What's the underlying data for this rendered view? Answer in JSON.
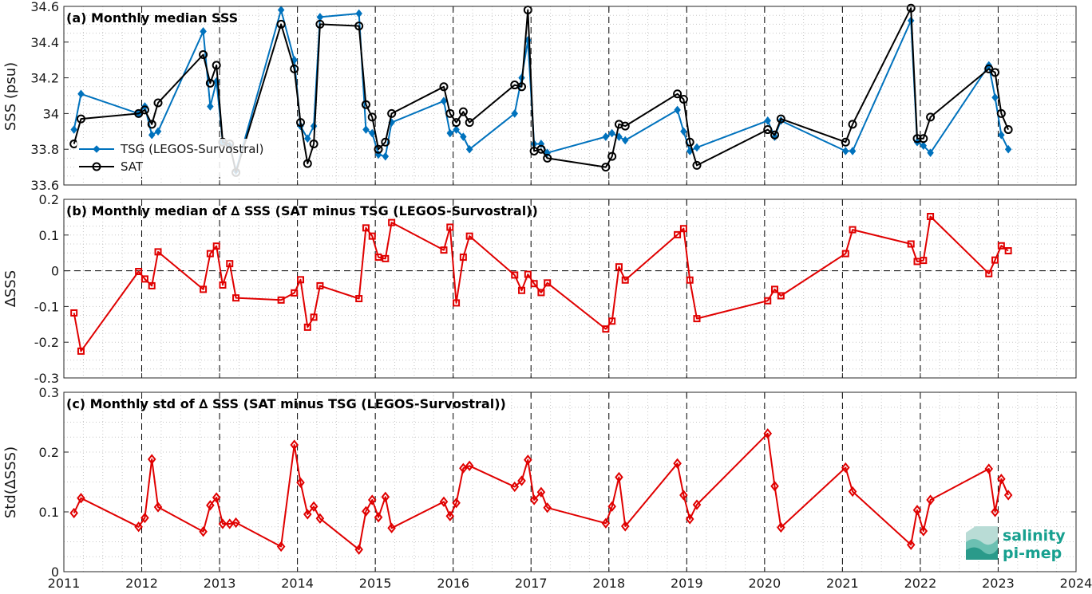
{
  "x_axis": {
    "ticks": [
      "2011",
      "2012",
      "2013",
      "2014",
      "2015",
      "2016",
      "2017",
      "2018",
      "2019",
      "2020",
      "2021",
      "2022",
      "2023",
      "2024"
    ]
  },
  "logo": {
    "line1": "salinity",
    "line2": "pi-mep"
  },
  "colors": {
    "tsg": "#0072bd",
    "sat": "#000000",
    "diff": "#e00000",
    "grid": "#c8c8c8"
  },
  "chart_data": [
    {
      "type": "line",
      "title": "(a) Monthly median SSS",
      "ylabel": "SSS (psu)",
      "xlim": [
        2011,
        2024
      ],
      "ylim": [
        33.6,
        34.6
      ],
      "yticks": [
        "33.6",
        "33.8",
        "34",
        "34.2",
        "34.4",
        "34.6"
      ],
      "yticks_values": [
        33.6,
        33.8,
        34.0,
        34.2,
        34.4,
        34.6
      ],
      "legend_position": "bottom-left",
      "series": [
        {
          "name": "TSG (LEGOS-Survostral)",
          "marker": "diamond-filled",
          "x": [
            2011.13,
            2011.22,
            2011.96,
            2012.04,
            2012.13,
            2012.21,
            2012.79,
            2012.88,
            2012.96,
            2013.04,
            2013.13,
            2013.21,
            2013.79,
            2013.96,
            2014.04,
            2014.13,
            2014.21,
            2014.29,
            2014.79,
            2014.88,
            2014.96,
            2015.04,
            2015.13,
            2015.21,
            2015.88,
            2015.96,
            2016.04,
            2016.13,
            2016.21,
            2016.79,
            2016.88,
            2016.96,
            2017.04,
            2017.13,
            2017.21,
            2017.96,
            2018.04,
            2018.13,
            2018.21,
            2018.88,
            2018.96,
            2019.04,
            2019.13,
            2020.04,
            2020.13,
            2020.21,
            2021.04,
            2021.13,
            2021.88,
            2021.96,
            2022.04,
            2022.13,
            2022.88,
            2022.96,
            2023.04,
            2023.13
          ],
          "y": [
            33.91,
            34.11,
            34.0,
            34.04,
            33.88,
            33.9,
            34.46,
            34.04,
            34.18,
            33.84,
            33.82,
            33.68,
            34.58,
            34.3,
            33.93,
            33.86,
            33.93,
            34.54,
            34.56,
            33.91,
            33.89,
            33.77,
            33.76,
            33.95,
            34.07,
            33.89,
            33.91,
            33.87,
            33.8,
            34.0,
            34.2,
            34.41,
            33.83,
            33.83,
            33.78,
            33.87,
            33.89,
            33.87,
            33.85,
            34.02,
            33.9,
            33.79,
            33.81,
            33.96,
            33.87,
            33.96,
            33.79,
            33.79,
            34.52,
            33.84,
            33.82,
            33.78,
            34.27,
            34.09,
            33.88,
            33.8
          ]
        },
        {
          "name": "SAT",
          "marker": "circle-open",
          "x": [
            2011.13,
            2011.22,
            2011.96,
            2012.04,
            2012.13,
            2012.21,
            2012.79,
            2012.88,
            2012.96,
            2013.04,
            2013.13,
            2013.21,
            2013.79,
            2013.96,
            2014.04,
            2014.13,
            2014.21,
            2014.29,
            2014.79,
            2014.88,
            2014.96,
            2015.04,
            2015.13,
            2015.21,
            2015.88,
            2015.96,
            2016.04,
            2016.13,
            2016.21,
            2016.79,
            2016.88,
            2016.96,
            2017.04,
            2017.13,
            2017.21,
            2017.96,
            2018.04,
            2018.13,
            2018.21,
            2018.88,
            2018.96,
            2019.04,
            2019.13,
            2020.04,
            2020.13,
            2020.21,
            2021.04,
            2021.13,
            2021.88,
            2021.96,
            2022.04,
            2022.13,
            2022.88,
            2022.96,
            2023.04,
            2023.13
          ],
          "y": [
            33.83,
            33.97,
            34.0,
            34.02,
            33.94,
            34.06,
            34.33,
            34.17,
            34.27,
            33.84,
            33.83,
            33.67,
            34.5,
            34.25,
            33.95,
            33.72,
            33.83,
            34.5,
            34.49,
            34.05,
            33.98,
            33.8,
            33.84,
            34.0,
            34.15,
            34.0,
            33.95,
            34.01,
            33.95,
            34.16,
            34.15,
            34.58,
            33.79,
            33.8,
            33.75,
            33.7,
            33.76,
            33.94,
            33.93,
            34.11,
            34.08,
            33.84,
            33.71,
            33.91,
            33.88,
            33.97,
            33.84,
            33.94,
            34.59,
            33.86,
            33.86,
            33.98,
            34.25,
            34.23,
            34.0,
            33.91
          ]
        }
      ]
    },
    {
      "type": "line",
      "title": "(b) Monthly median of ∆ SSS (SAT minus TSG (LEGOS-Survostral))",
      "ylabel": "∆SSS",
      "xlim": [
        2011,
        2024
      ],
      "ylim": [
        -0.3,
        0.2
      ],
      "yticks": [
        "-0.3",
        "-0.2",
        "-0.1",
        "0",
        "0.1",
        "0.2"
      ],
      "yticks_values": [
        -0.3,
        -0.2,
        -0.1,
        0,
        0.1,
        0.2
      ],
      "zero_line": true,
      "series": [
        {
          "marker": "square-open",
          "x": [
            2011.13,
            2011.22,
            2011.96,
            2012.04,
            2012.13,
            2012.21,
            2012.79,
            2012.88,
            2012.96,
            2013.04,
            2013.13,
            2013.21,
            2013.79,
            2013.96,
            2014.04,
            2014.13,
            2014.21,
            2014.29,
            2014.79,
            2014.88,
            2014.96,
            2015.04,
            2015.13,
            2015.21,
            2015.88,
            2015.96,
            2016.04,
            2016.13,
            2016.21,
            2016.79,
            2016.88,
            2016.96,
            2017.04,
            2017.13,
            2017.21,
            2017.96,
            2018.04,
            2018.13,
            2018.21,
            2018.88,
            2018.96,
            2019.04,
            2019.13,
            2020.04,
            2020.13,
            2020.21,
            2021.04,
            2021.13,
            2021.88,
            2021.96,
            2022.04,
            2022.13,
            2022.88,
            2022.96,
            2023.04,
            2023.13
          ],
          "y": [
            -0.118,
            -0.225,
            -0.002,
            -0.023,
            -0.042,
            0.053,
            -0.052,
            0.048,
            0.069,
            -0.04,
            0.02,
            -0.076,
            -0.082,
            -0.062,
            -0.025,
            -0.158,
            -0.13,
            -0.042,
            -0.078,
            0.12,
            0.097,
            0.038,
            0.034,
            0.135,
            0.058,
            0.122,
            -0.09,
            0.038,
            0.097,
            -0.012,
            -0.055,
            -0.01,
            -0.036,
            -0.061,
            -0.034,
            -0.163,
            -0.141,
            0.011,
            -0.026,
            0.101,
            0.118,
            -0.026,
            -0.134,
            -0.084,
            -0.052,
            -0.07,
            0.048,
            0.115,
            0.075,
            0.026,
            0.029,
            0.152,
            -0.008,
            0.03,
            0.07,
            0.056
          ]
        }
      ]
    },
    {
      "type": "line",
      "title": "(c) Monthly std of ∆ SSS (SAT minus TSG (LEGOS-Survostral))",
      "ylabel": "Std(∆SSS)",
      "xlim": [
        2011,
        2024
      ],
      "ylim": [
        0,
        0.3
      ],
      "yticks": [
        "0",
        "0.1",
        "0.2",
        "0.3"
      ],
      "yticks_values": [
        0,
        0.1,
        0.2,
        0.3
      ],
      "series": [
        {
          "marker": "diamond-open",
          "x": [
            2011.13,
            2011.22,
            2011.96,
            2012.04,
            2012.13,
            2012.21,
            2012.79,
            2012.88,
            2012.96,
            2013.04,
            2013.13,
            2013.21,
            2013.79,
            2013.96,
            2014.04,
            2014.13,
            2014.21,
            2014.29,
            2014.79,
            2014.88,
            2014.96,
            2015.04,
            2015.13,
            2015.21,
            2015.88,
            2015.96,
            2016.04,
            2016.13,
            2016.21,
            2016.79,
            2016.88,
            2016.96,
            2017.04,
            2017.13,
            2017.21,
            2017.96,
            2018.04,
            2018.13,
            2018.21,
            2018.88,
            2018.96,
            2019.04,
            2019.13,
            2020.04,
            2020.13,
            2020.21,
            2021.04,
            2021.13,
            2021.88,
            2021.96,
            2022.04,
            2022.13,
            2022.88,
            2022.96,
            2023.04,
            2023.13
          ],
          "y": [
            0.098,
            0.123,
            0.075,
            0.09,
            0.188,
            0.108,
            0.067,
            0.111,
            0.124,
            0.08,
            0.08,
            0.082,
            0.042,
            0.212,
            0.149,
            0.096,
            0.109,
            0.089,
            0.037,
            0.101,
            0.12,
            0.091,
            0.125,
            0.073,
            0.117,
            0.093,
            0.115,
            0.173,
            0.177,
            0.142,
            0.152,
            0.187,
            0.12,
            0.133,
            0.107,
            0.081,
            0.109,
            0.158,
            0.076,
            0.181,
            0.128,
            0.088,
            0.112,
            0.231,
            0.143,
            0.074,
            0.174,
            0.134,
            0.045,
            0.103,
            0.068,
            0.12,
            0.172,
            0.1,
            0.155,
            0.128
          ]
        }
      ]
    }
  ]
}
